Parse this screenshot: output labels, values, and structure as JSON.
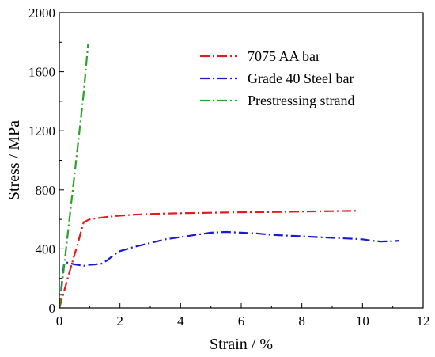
{
  "chart_data": {
    "type": "line",
    "xlabel": "Strain / %",
    "ylabel": "Stress / MPa",
    "xlim": [
      0,
      12
    ],
    "ylim": [
      0,
      2000
    ],
    "x_ticks": [
      0,
      2,
      4,
      6,
      8,
      10,
      12
    ],
    "y_ticks": [
      0,
      400,
      800,
      1200,
      1600,
      2000
    ],
    "grid": false,
    "legend_position": "top-right",
    "series": [
      {
        "name": "7075 AA bar",
        "color": "#e41a1c",
        "line_style": "dash-dot",
        "x": [
          0,
          0.1,
          0.2,
          0.4,
          0.6,
          0.8,
          1.0,
          1.5,
          2.0,
          2.5,
          3.0,
          4.0,
          5.0,
          6.0,
          7.0,
          8.0,
          9.0,
          9.8
        ],
        "y": [
          0,
          70,
          145,
          290,
          430,
          580,
          600,
          615,
          625,
          632,
          637,
          642,
          645,
          648,
          650,
          653,
          656,
          658
        ]
      },
      {
        "name": "Grade 40 Steel bar",
        "color": "#1a1ad6",
        "line_style": "dash-dot",
        "x": [
          0,
          0.05,
          0.1,
          0.15,
          0.2,
          0.3,
          0.5,
          0.8,
          1.0,
          1.2,
          1.4,
          1.6,
          1.8,
          2.0,
          2.5,
          3.0,
          3.5,
          4.0,
          4.5,
          5.0,
          5.5,
          6.0,
          6.5,
          7.0,
          7.5,
          8.0,
          8.5,
          9.0,
          9.5,
          10.0,
          10.3,
          10.6,
          11.0,
          11.2
        ],
        "y": [
          0,
          100,
          200,
          290,
          310,
          305,
          295,
          285,
          292,
          295,
          300,
          325,
          360,
          385,
          415,
          440,
          465,
          480,
          495,
          510,
          515,
          510,
          505,
          495,
          490,
          485,
          480,
          475,
          470,
          465,
          455,
          450,
          452,
          455
        ]
      },
      {
        "name": "Prestressing strand",
        "color": "#2ca02c",
        "line_style": "dash-dot",
        "x": [
          0,
          0.2,
          0.4,
          0.6,
          0.8,
          0.95
        ],
        "y": [
          0,
          360,
          720,
          1080,
          1450,
          1790
        ]
      }
    ]
  }
}
